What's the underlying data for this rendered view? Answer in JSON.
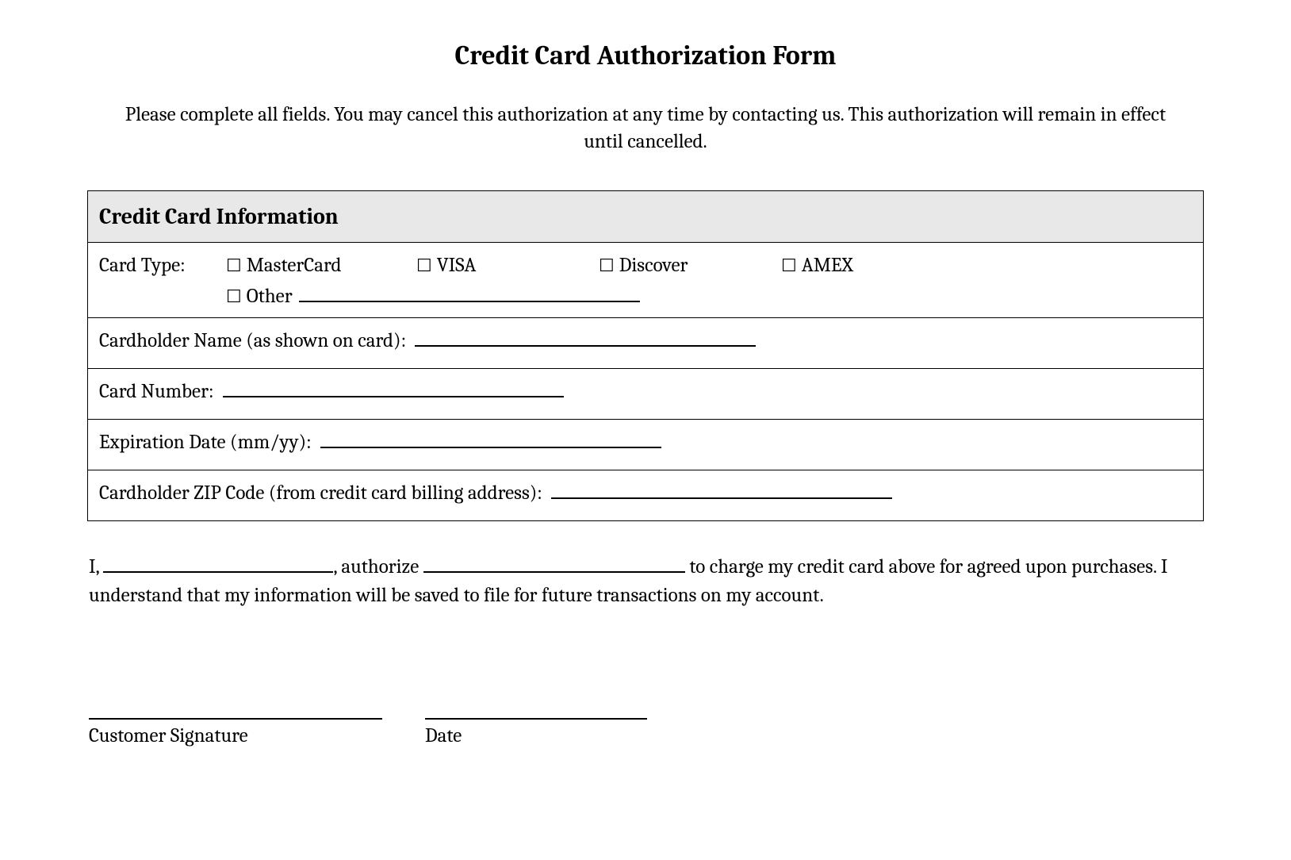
{
  "form": {
    "title": "Credit Card Authorization Form",
    "instructions": "Please complete all fields. You may cancel this authorization at any time by contacting us. This authorization will remain in effect until cancelled.",
    "section_header": "Credit Card Information",
    "card_type_label": "Card Type:",
    "card_types": {
      "mastercard": "MasterCard",
      "visa": "VISA",
      "discover": "Discover",
      "amex": "AMEX",
      "other": "Other"
    },
    "cardholder_name_label": "Cardholder Name (as shown on card):",
    "card_number_label": "Card Number:",
    "expiration_label": "Expiration Date (mm/yy):",
    "zip_label": "Cardholder ZIP Code (from credit card billing address):",
    "auth_text": {
      "prefix": "I,",
      "mid1": ", authorize",
      "mid2": "to charge my credit card above for agreed upon purchases. I understand that my information will be saved to file for future transactions on my account."
    },
    "signature_label": "Customer Signature",
    "date_label": "Date"
  },
  "styling": {
    "background_color": "#ffffff",
    "text_color": "#000000",
    "header_bg": "#e8e8e8",
    "border_color": "#000000",
    "font_family": "Cambria, Georgia, serif",
    "title_fontsize": 34,
    "body_fontsize": 25,
    "section_header_fontsize": 28,
    "border_width": 1.5,
    "underline_width": 2,
    "checkbox_glyph": "☐"
  }
}
